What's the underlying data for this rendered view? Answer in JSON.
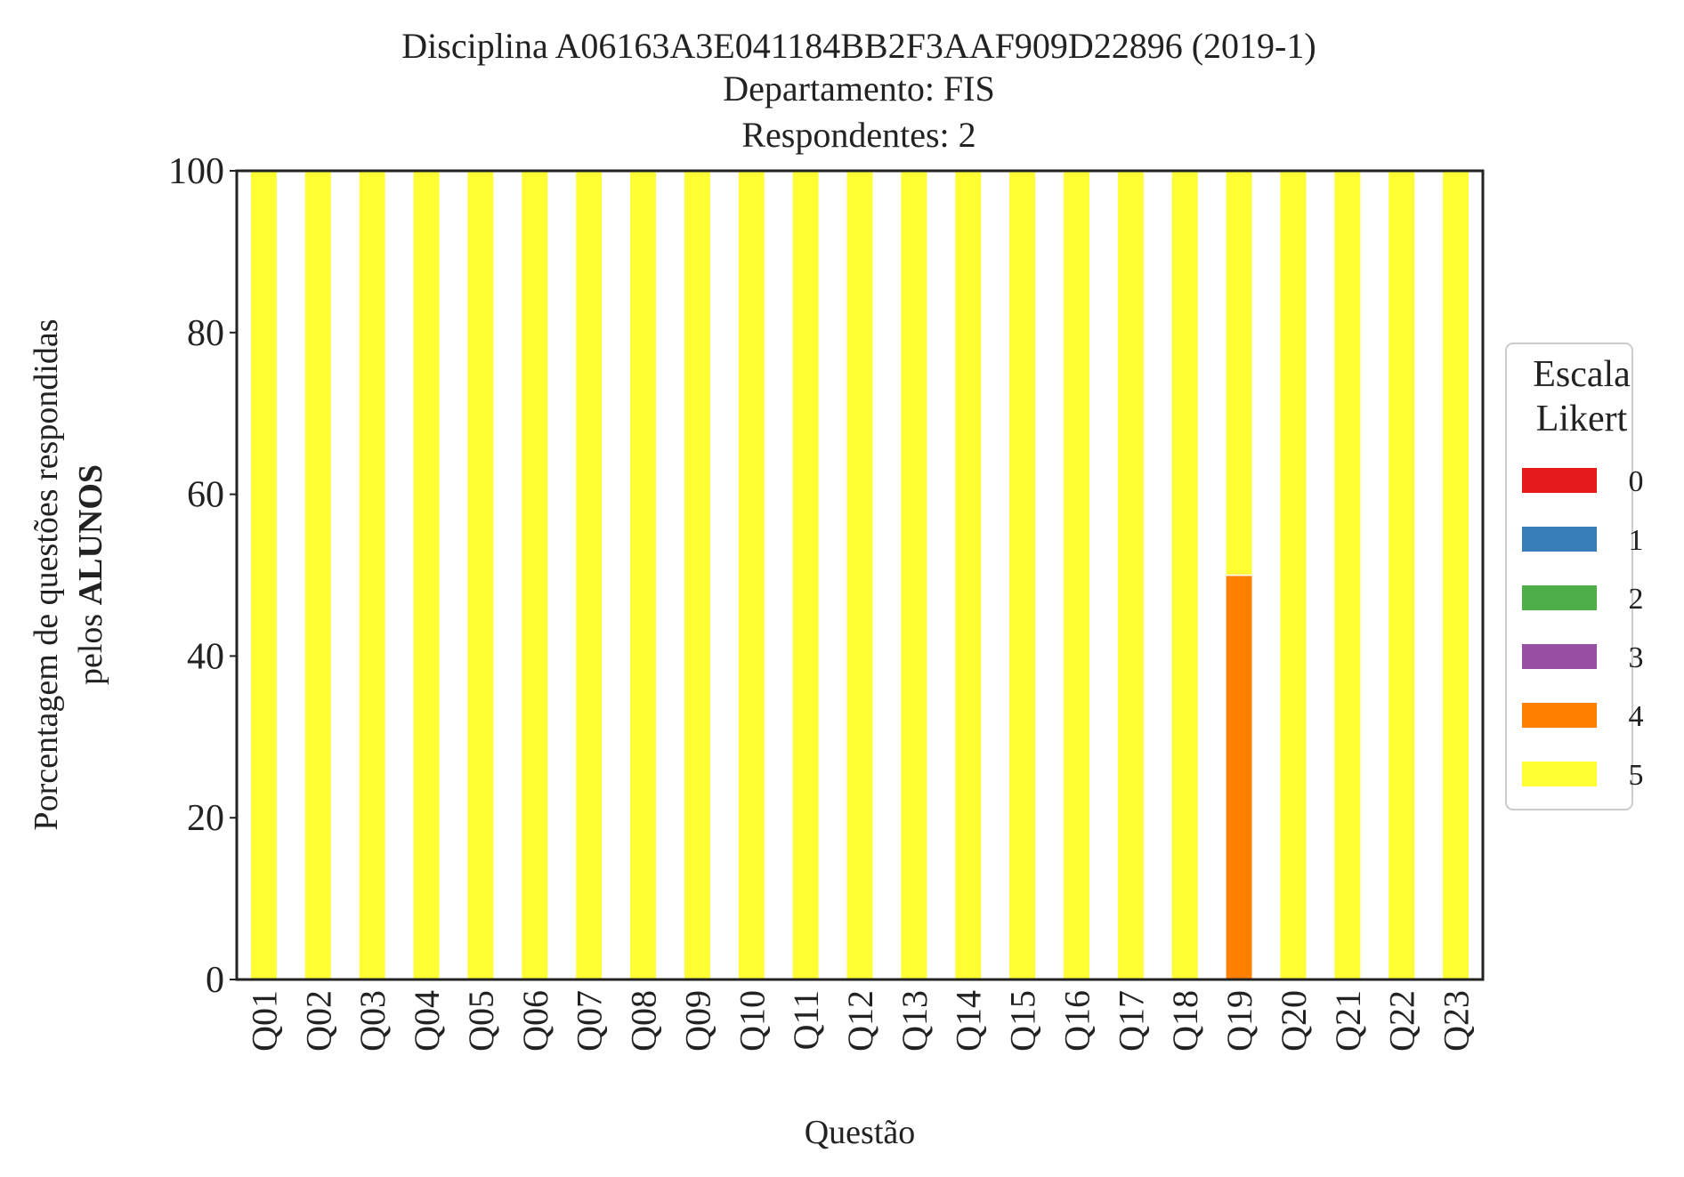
{
  "chart_data": {
    "type": "bar",
    "stacked": true,
    "title_lines": [
      "Disciplina A06163A3E041184BB2F3AAF909D22896 (2019-1)",
      "Departamento: FIS",
      "Respondentes: 2"
    ],
    "xlabel": "Questão",
    "ylabel_line1": "Porcentagem de questões respondidas",
    "ylabel_line2_prefix": "pelos ",
    "ylabel_line2_bold": "ALUNOS",
    "ylim": [
      0,
      100
    ],
    "yticks": [
      0,
      20,
      40,
      60,
      80,
      100
    ],
    "grid": false,
    "legend": {
      "title_line1": "Escala",
      "title_line2": "Likert",
      "placement": "center-right"
    },
    "categories": [
      "Q01",
      "Q02",
      "Q03",
      "Q04",
      "Q05",
      "Q06",
      "Q07",
      "Q08",
      "Q09",
      "Q10",
      "Q11",
      "Q12",
      "Q13",
      "Q14",
      "Q15",
      "Q16",
      "Q17",
      "Q18",
      "Q19",
      "Q20",
      "Q21",
      "Q22",
      "Q23"
    ],
    "series": [
      {
        "name": "0",
        "color": "#e41a1c",
        "values": [
          0,
          0,
          0,
          0,
          0,
          0,
          0,
          0,
          0,
          0,
          0,
          0,
          0,
          0,
          0,
          0,
          0,
          0,
          0,
          0,
          0,
          0,
          0
        ]
      },
      {
        "name": "1",
        "color": "#377eb8",
        "values": [
          0,
          0,
          0,
          0,
          0,
          0,
          0,
          0,
          0,
          0,
          0,
          0,
          0,
          0,
          0,
          0,
          0,
          0,
          0,
          0,
          0,
          0,
          0
        ]
      },
      {
        "name": "2",
        "color": "#4daf4a",
        "values": [
          0,
          0,
          0,
          0,
          0,
          0,
          0,
          0,
          0,
          0,
          0,
          0,
          0,
          0,
          0,
          0,
          0,
          0,
          0,
          0,
          0,
          0,
          0
        ]
      },
      {
        "name": "3",
        "color": "#984ea3",
        "values": [
          0,
          0,
          0,
          0,
          0,
          0,
          0,
          0,
          0,
          0,
          0,
          0,
          0,
          0,
          0,
          0,
          0,
          0,
          0,
          0,
          0,
          0,
          0
        ]
      },
      {
        "name": "4",
        "color": "#ff7f00",
        "values": [
          0,
          0,
          0,
          0,
          0,
          0,
          0,
          0,
          0,
          0,
          0,
          0,
          0,
          0,
          0,
          0,
          0,
          0,
          50,
          0,
          0,
          0,
          0
        ]
      },
      {
        "name": "5",
        "color": "#ffff33",
        "values": [
          100,
          100,
          100,
          100,
          100,
          100,
          100,
          100,
          100,
          100,
          100,
          100,
          100,
          100,
          100,
          100,
          100,
          100,
          50,
          100,
          100,
          100,
          100
        ]
      }
    ]
  }
}
